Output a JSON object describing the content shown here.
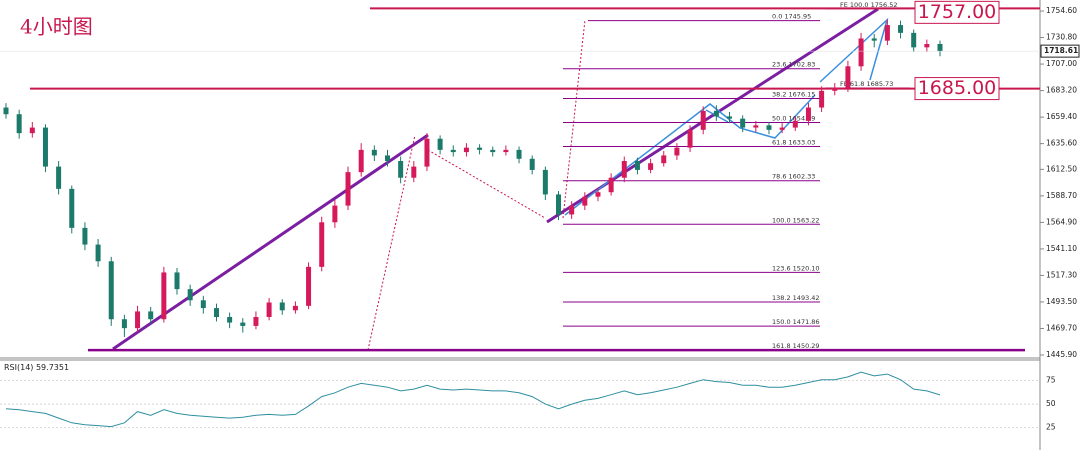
{
  "chart_data": {
    "type": "candlestick",
    "title": "4小时图",
    "up_color": "#d6195a",
    "down_color": "#1b7a6a",
    "candles": [
      [
        1668,
        1672,
        1658,
        1662
      ],
      [
        1662,
        1666,
        1640,
        1645
      ],
      [
        1645,
        1655,
        1641,
        1650
      ],
      [
        1650,
        1653,
        1610,
        1615
      ],
      [
        1615,
        1620,
        1590,
        1595
      ],
      [
        1595,
        1598,
        1555,
        1560
      ],
      [
        1560,
        1565,
        1540,
        1545
      ],
      [
        1545,
        1550,
        1525,
        1530
      ],
      [
        1530,
        1534,
        1472,
        1478
      ],
      [
        1478,
        1482,
        1462,
        1470
      ],
      [
        1470,
        1490,
        1466,
        1485
      ],
      [
        1485,
        1489,
        1474,
        1478
      ],
      [
        1478,
        1525,
        1475,
        1520
      ],
      [
        1520,
        1524,
        1500,
        1505
      ],
      [
        1505,
        1509,
        1490,
        1495
      ],
      [
        1495,
        1499,
        1483,
        1488
      ],
      [
        1488,
        1492,
        1476,
        1480
      ],
      [
        1480,
        1484,
        1470,
        1475
      ],
      [
        1475,
        1479,
        1466,
        1472
      ],
      [
        1472,
        1485,
        1469,
        1480
      ],
      [
        1480,
        1497,
        1477,
        1493
      ],
      [
        1493,
        1496,
        1482,
        1486
      ],
      [
        1486,
        1494,
        1483,
        1490
      ],
      [
        1490,
        1529,
        1487,
        1525
      ],
      [
        1525,
        1570,
        1521,
        1565
      ],
      [
        1565,
        1585,
        1560,
        1580
      ],
      [
        1580,
        1615,
        1576,
        1610
      ],
      [
        1610,
        1636,
        1606,
        1630
      ],
      [
        1630,
        1634,
        1620,
        1625
      ],
      [
        1625,
        1630,
        1615,
        1620
      ],
      [
        1620,
        1624,
        1600,
        1605
      ],
      [
        1605,
        1620,
        1601,
        1615
      ],
      [
        1615,
        1645,
        1611,
        1640
      ],
      [
        1640,
        1643,
        1626,
        1630
      ],
      [
        1630,
        1634,
        1624,
        1628
      ],
      [
        1628,
        1636,
        1624,
        1632
      ],
      [
        1632,
        1635,
        1626,
        1630
      ],
      [
        1630,
        1633,
        1624,
        1628
      ],
      [
        1628,
        1634,
        1625,
        1630
      ],
      [
        1630,
        1633,
        1618,
        1622
      ],
      [
        1622,
        1625,
        1608,
        1612
      ],
      [
        1612,
        1615,
        1585,
        1590
      ],
      [
        1590,
        1593,
        1567,
        1572
      ],
      [
        1572,
        1584,
        1568,
        1580
      ],
      [
        1580,
        1592,
        1576,
        1588
      ],
      [
        1588,
        1596,
        1584,
        1592
      ],
      [
        1592,
        1609,
        1589,
        1605
      ],
      [
        1605,
        1624,
        1601,
        1620
      ],
      [
        1620,
        1623,
        1608,
        1612
      ],
      [
        1612,
        1622,
        1609,
        1618
      ],
      [
        1618,
        1629,
        1615,
        1625
      ],
      [
        1625,
        1636,
        1621,
        1632
      ],
      [
        1632,
        1652,
        1628,
        1648
      ],
      [
        1648,
        1669,
        1644,
        1665
      ],
      [
        1665,
        1670,
        1656,
        1660
      ],
      [
        1660,
        1664,
        1654,
        1658
      ],
      [
        1658,
        1661,
        1646,
        1650
      ],
      [
        1650,
        1656,
        1646,
        1652
      ],
      [
        1652,
        1655,
        1644,
        1648
      ],
      [
        1648,
        1654,
        1645,
        1650
      ],
      [
        1650,
        1660,
        1647,
        1656
      ],
      [
        1656,
        1672,
        1652,
        1668
      ],
      [
        1668,
        1687,
        1664,
        1683
      ],
      [
        1683,
        1690,
        1679,
        1686
      ],
      [
        1686,
        1710,
        1682,
        1705
      ],
      [
        1705,
        1735,
        1701,
        1730
      ],
      [
        1730,
        1734,
        1722,
        1728
      ],
      [
        1728,
        1747,
        1724,
        1742
      ],
      [
        1742,
        1746,
        1730,
        1735
      ],
      [
        1735,
        1738,
        1718,
        1722
      ],
      [
        1722,
        1729,
        1718,
        1725
      ],
      [
        1725,
        1728,
        1714,
        1718.61
      ]
    ],
    "ylim": [
      1443.2,
      1764.5
    ],
    "yticks": [
      {
        "value": 1754.6,
        "label": "1754.60"
      },
      {
        "value": 1730.8,
        "label": "1730.80"
      },
      {
        "value": 1707.0,
        "label": "1707.00"
      },
      {
        "value": 1683.2,
        "label": "1683.20"
      },
      {
        "value": 1659.4,
        "label": "1659.40"
      },
      {
        "value": 1635.6,
        "label": "1635.60"
      },
      {
        "value": 1612.5,
        "label": "1612.50"
      },
      {
        "value": 1588.7,
        "label": "1588.70"
      },
      {
        "value": 1564.9,
        "label": "1564.90"
      },
      {
        "value": 1541.1,
        "label": "1541.10"
      },
      {
        "value": 1517.3,
        "label": "1517.30"
      },
      {
        "value": 1493.5,
        "label": "1493.50"
      },
      {
        "value": 1469.7,
        "label": "1469.70"
      },
      {
        "value": 1445.9,
        "label": "1445.90"
      }
    ],
    "levels_color": "#c8174f",
    "levels": [
      {
        "value": 1757,
        "label": "1757.00"
      },
      {
        "value": 1685,
        "label": "1685.00"
      }
    ],
    "fib_color": "#8b008b",
    "fib_levels": [
      {
        "value": 1745.95,
        "label": "0.0  1745.95"
      },
      {
        "value": 1702.83,
        "label": "23.6  1702.83"
      },
      {
        "value": 1676.15,
        "label": "38.2  1676.15"
      },
      {
        "value": 1654.59,
        "label": "50.0  1654.59"
      },
      {
        "value": 1633.03,
        "label": "61.8  1633.03"
      },
      {
        "value": 1602.33,
        "label": "78.6  1602.33"
      },
      {
        "value": 1563.22,
        "label": "100.0  1563.22"
      },
      {
        "value": 1520.1,
        "label": "123.6  1520.10"
      },
      {
        "value": 1493.42,
        "label": "138.2  1493.42"
      },
      {
        "value": 1471.86,
        "label": "150.0  1471.86"
      },
      {
        "value": 1450.29,
        "label": "161.8  1450.29"
      }
    ],
    "fe_levels": [
      {
        "value": 1756.52,
        "label": "FE 100.0  1756.52"
      },
      {
        "value": 1685.73,
        "label": "FE 61.8  1685.73"
      }
    ],
    "indicator": {
      "name": "RSI(14)",
      "color": "#2f8fa0",
      "ylim": [
        1,
        97
      ],
      "yticks": [
        75,
        50,
        25
      ],
      "values": [
        45,
        44,
        42,
        40,
        35,
        30,
        28,
        27,
        26,
        30,
        42,
        38,
        44,
        40,
        38,
        37,
        36,
        35,
        36,
        38,
        39,
        38,
        39,
        48,
        58,
        62,
        68,
        72,
        70,
        68,
        64,
        66,
        70,
        66,
        65,
        66,
        65,
        64,
        64,
        62,
        58,
        50,
        45,
        50,
        54,
        56,
        60,
        64,
        60,
        62,
        65,
        68,
        72,
        76,
        74,
        73,
        70,
        70,
        68,
        68,
        70,
        73,
        76,
        76,
        79,
        84,
        80,
        82,
        76,
        66,
        64,
        59.7351
      ]
    }
  }
}
